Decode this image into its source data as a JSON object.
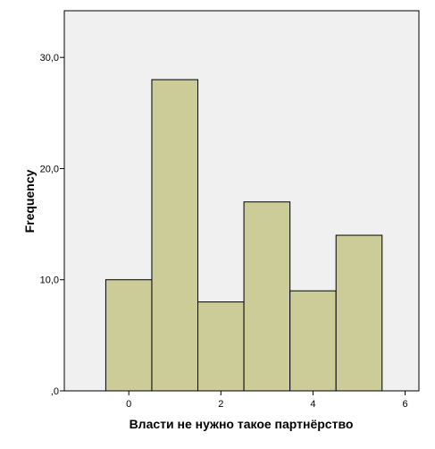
{
  "chart_data": {
    "type": "bar",
    "subtype": "histogram",
    "bins": [
      {
        "x_start": -0.5,
        "x_end": 0.5,
        "value": 10
      },
      {
        "x_start": 0.5,
        "x_end": 1.5,
        "value": 28
      },
      {
        "x_start": 1.5,
        "x_end": 2.5,
        "value": 8
      },
      {
        "x_start": 2.5,
        "x_end": 3.5,
        "value": 17
      },
      {
        "x_start": 3.5,
        "x_end": 4.5,
        "value": 9
      },
      {
        "x_start": 4.5,
        "x_end": 5.5,
        "value": 14
      }
    ],
    "xlabel": "Власти не нужно такое партнёрство",
    "ylabel": "Frequency",
    "xlim": [
      -1.4,
      6.3
    ],
    "ylim": [
      0,
      34.2
    ],
    "x_ticks": [
      {
        "value": 0,
        "label": "0"
      },
      {
        "value": 2,
        "label": "2"
      },
      {
        "value": 4,
        "label": "4"
      },
      {
        "value": 6,
        "label": "6"
      }
    ],
    "y_ticks": [
      {
        "value": 0,
        "label": ",0"
      },
      {
        "value": 10,
        "label": "10,0"
      },
      {
        "value": 20,
        "label": "20,0"
      },
      {
        "value": 30,
        "label": "30,0"
      }
    ],
    "grid": false,
    "colors": {
      "bar_fill": "#cccc99",
      "bar_stroke": "#000000",
      "plot_background": "#f0f0f0"
    }
  }
}
